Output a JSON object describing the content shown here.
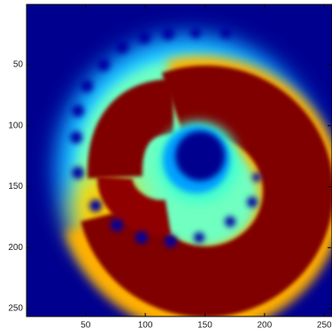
{
  "chart_data": {
    "type": "heatmap",
    "xlim": [
      0.5,
      256.5
    ],
    "xticks": [
      50,
      100,
      150,
      200,
      250
    ],
    "ylim": [
      256.5,
      0.5
    ],
    "yticks": [
      50,
      100,
      150,
      200,
      250
    ]
  }
}
